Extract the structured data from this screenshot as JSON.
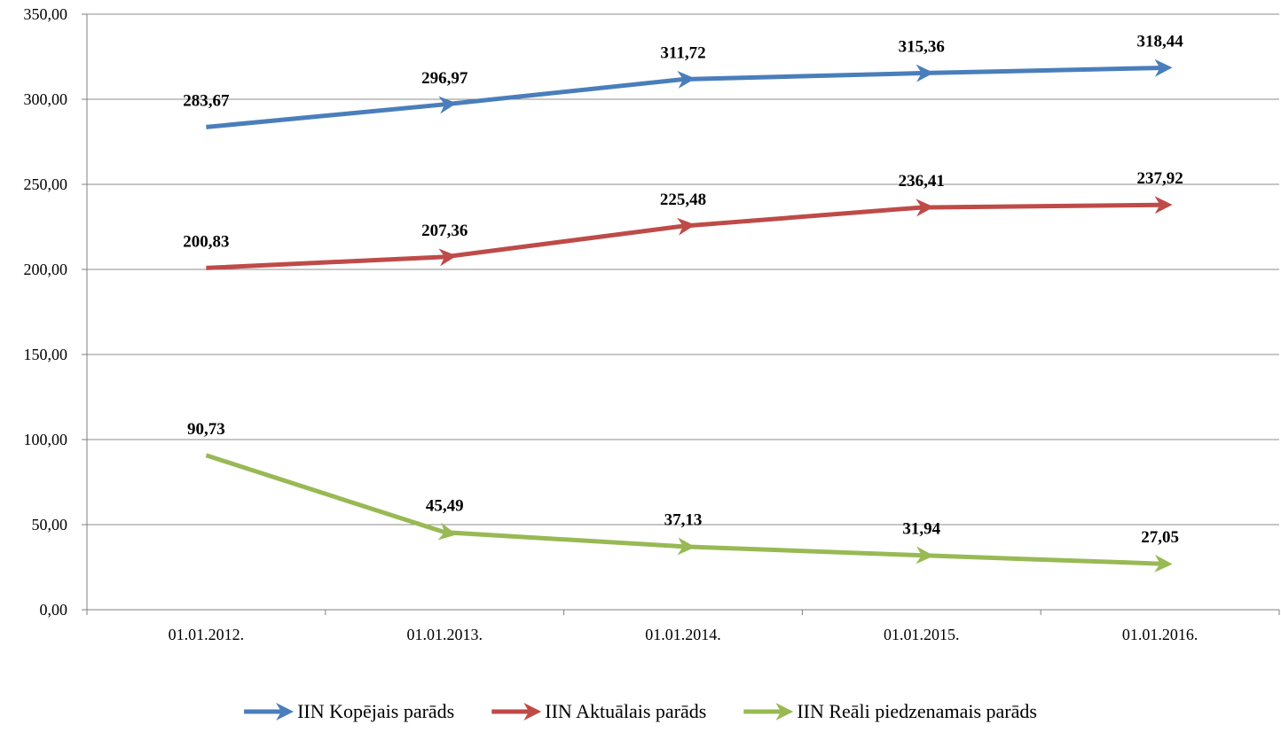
{
  "chart_data": {
    "type": "line",
    "categories": [
      "01.01.2012.",
      "01.01.2013.",
      "01.01.2014.",
      "01.01.2015.",
      "01.01.2016."
    ],
    "series": [
      {
        "name": "IIN Kopējais parāds",
        "color": "#4a7ebb",
        "values": [
          283.67,
          296.97,
          311.72,
          315.36,
          318.44
        ],
        "labels": [
          "283,67",
          "296,97",
          "311,72",
          "315,36",
          "318,44"
        ]
      },
      {
        "name": "IIN Aktuālais parāds",
        "color": "#be4b48",
        "values": [
          200.83,
          207.36,
          225.48,
          236.41,
          237.92
        ],
        "labels": [
          "200,83",
          "207,36",
          "225,48",
          "236,41",
          "237,92"
        ]
      },
      {
        "name": "IIN Reāli piedzenamais parāds",
        "color": "#98b954",
        "values": [
          90.73,
          45.49,
          37.13,
          31.94,
          27.05
        ],
        "labels": [
          "90,73",
          "45,49",
          "37,13",
          "31,94",
          "27,05"
        ]
      }
    ],
    "y_ticks": [
      0,
      50,
      100,
      150,
      200,
      250,
      300,
      350
    ],
    "y_tick_labels": [
      "0,00",
      "50,00",
      "100,00",
      "150,00",
      "200,00",
      "250,00",
      "300,00",
      "350,00"
    ],
    "ylim": [
      0,
      350
    ],
    "title": "",
    "xlabel": "",
    "ylabel": "",
    "grid": true,
    "legend_position": "bottom",
    "line_end_marker": "arrow"
  }
}
